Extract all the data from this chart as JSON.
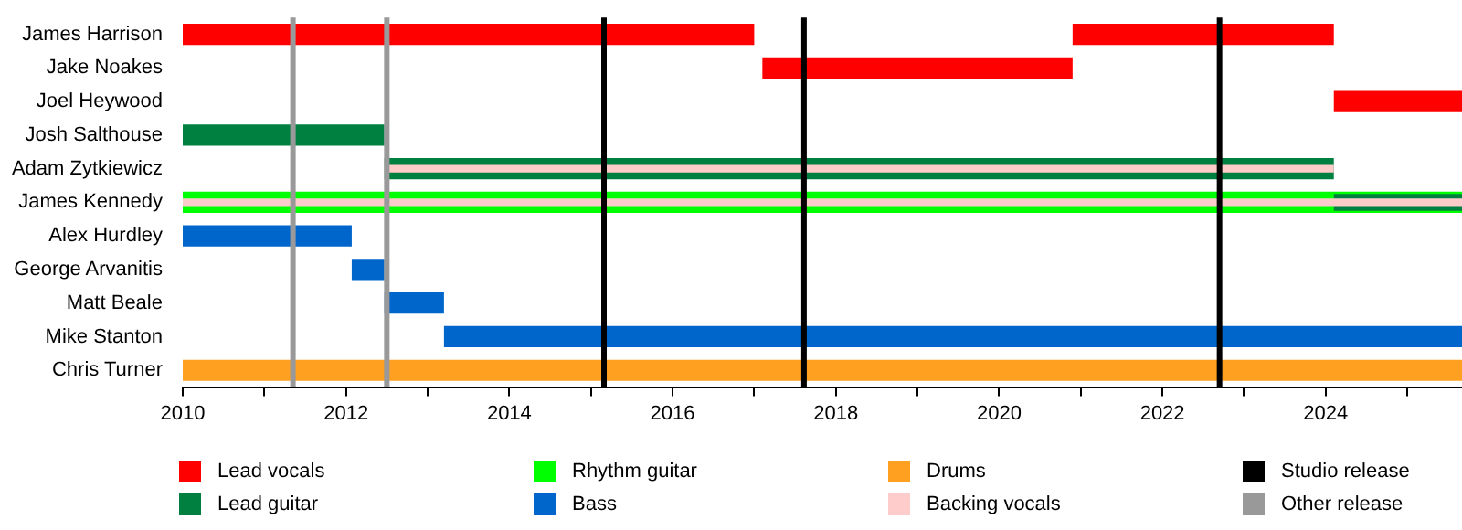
{
  "chart_data": {
    "type": "bar",
    "orientation": "horizontal",
    "categories": [
      "James Harrison",
      "Jake Noakes",
      "Joel Heywood",
      "Josh Salthouse",
      "Adam Zytkiewicz",
      "James Kennedy",
      "Alex Hurdley",
      "George Arvanitis",
      "Matt Beale",
      "Mike Stanton",
      "Chris Turner"
    ],
    "series": [
      {
        "name": "Lead vocals",
        "color": "#ff0000",
        "base": [
          2010,
          2017.1,
          2024.1,
          null,
          null,
          null,
          null,
          null,
          null,
          null,
          null
        ],
        "values": [
          7.0,
          3.8,
          1.57,
          null,
          null,
          null,
          null,
          null,
          null,
          null,
          null
        ]
      },
      {
        "color": "#ff0000",
        "base": [
          2020.9,
          null,
          null,
          null,
          null,
          null,
          null,
          null,
          null,
          null,
          null
        ],
        "values": [
          3.2,
          null,
          null,
          null,
          null,
          null,
          null,
          null,
          null,
          null,
          null
        ]
      },
      {
        "name": "Lead guitar",
        "color": "#008040",
        "base": [
          null,
          null,
          null,
          2010,
          2012.47,
          null,
          null,
          null,
          null,
          null,
          null
        ],
        "values": [
          null,
          null,
          null,
          2.47,
          11.63,
          null,
          null,
          null,
          null,
          null,
          null
        ]
      },
      {
        "name": "Rhythm guitar",
        "color": "#00ff00",
        "base": [
          null,
          null,
          null,
          null,
          null,
          2010,
          null,
          null,
          null,
          null,
          null
        ],
        "values": [
          null,
          null,
          null,
          null,
          null,
          15.67,
          null,
          null,
          null,
          null,
          null
        ]
      },
      {
        "name": "Bass",
        "color": "#0066cc",
        "base": [
          null,
          null,
          null,
          null,
          null,
          null,
          2010,
          2012.07,
          2012.47,
          2013.2,
          null
        ],
        "values": [
          null,
          null,
          null,
          null,
          null,
          null,
          2.07,
          0.4,
          0.73,
          12.47,
          null
        ]
      },
      {
        "name": "Drums",
        "color": "#ffa020",
        "base": [
          null,
          null,
          null,
          null,
          null,
          null,
          null,
          null,
          null,
          null,
          2010
        ],
        "values": [
          null,
          null,
          null,
          null,
          null,
          null,
          null,
          null,
          null,
          null,
          15.67
        ]
      },
      {
        "color": "#008040",
        "base": [
          null,
          null,
          null,
          null,
          null,
          2024.1,
          null,
          null,
          null,
          null,
          null
        ],
        "values": [
          null,
          null,
          null,
          null,
          null,
          1.57,
          null,
          null,
          null,
          null,
          null
        ]
      },
      {
        "name": "Backing vocals",
        "color": "#ffcccc",
        "base": [
          null,
          null,
          null,
          null,
          2012.47,
          2010,
          null,
          null,
          null,
          null,
          null
        ],
        "values": [
          null,
          null,
          null,
          null,
          11.63,
          15.67,
          null,
          null,
          null,
          null,
          null
        ]
      }
    ],
    "xlim": [
      2010,
      2025.67
    ],
    "xticks": [
      2010,
      {
        "value": 2011,
        "label": null
      },
      2012,
      {
        "value": 2013,
        "label": null
      },
      2014,
      {
        "value": 2015,
        "label": null
      },
      2016,
      {
        "value": 2017,
        "label": null
      },
      2018,
      {
        "value": 2019,
        "label": null
      },
      2020,
      {
        "value": 2021,
        "label": null
      },
      2022,
      {
        "value": 2023,
        "label": null
      },
      2024,
      {
        "value": 2025,
        "label": null
      }
    ],
    "ref_lines": [
      {
        "axis": "x",
        "value": 2015.16,
        "label": "Studio release",
        "color": "#000000"
      },
      {
        "axis": "x",
        "value": 2017.61,
        "color": "#000000"
      },
      {
        "axis": "x",
        "value": 2022.7,
        "color": "#000000"
      },
      {
        "axis": "x",
        "value": 2011.35,
        "label": "Other release",
        "color": "#999999"
      },
      {
        "axis": "x",
        "value": 2012.5,
        "color": "#999999"
      }
    ],
    "legend": "bottom"
  }
}
